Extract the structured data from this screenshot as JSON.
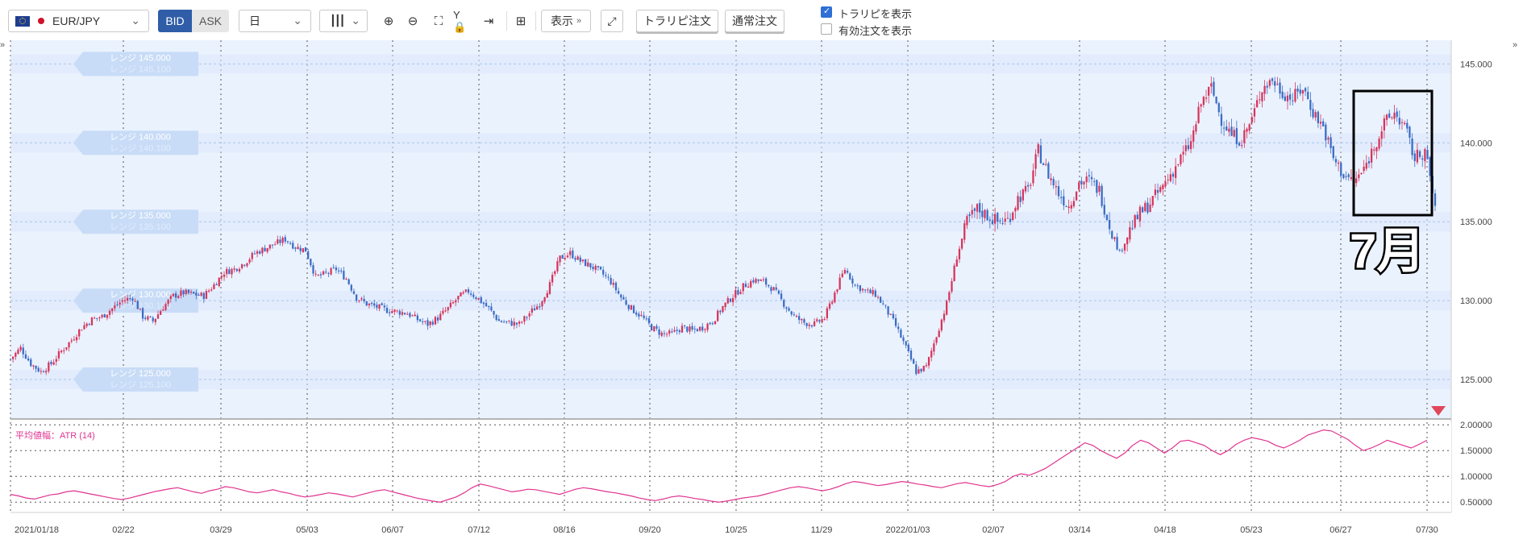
{
  "toolbar": {
    "symbol": "EUR/JPY",
    "bid_label": "BID",
    "ask_label": "ASK",
    "timeframe": "日",
    "display_label": "表示",
    "trail_order_label": "トラリピ注文",
    "normal_order_label": "通常注文",
    "show_trail_label": "トラリピを表示",
    "show_trail_checked": true,
    "show_active_label": "有効注文を表示",
    "show_active_checked": false,
    "collapse_glyph": "»"
  },
  "colors": {
    "up_candle": "#d6355b",
    "down_candle": "#3b6cc4",
    "atr_line": "#e0338f",
    "range_band": "#c8dcf7",
    "bid_active": "#2f5da8",
    "annotation": "#000000"
  },
  "annotation": {
    "label": "7月"
  },
  "chart_data": [
    {
      "type": "candlestick",
      "series_note": "EUR/JPY daily",
      "ylim": [
        122.5,
        146.5
      ],
      "y_ticks": [
        "145.000",
        "140.000",
        "135.000",
        "130.000",
        "125.000"
      ],
      "x_ticks": [
        "2021/01/18",
        "02/22",
        "03/29",
        "05/03",
        "06/07",
        "07/12",
        "08/16",
        "09/20",
        "10/25",
        "11/29",
        "2022/01/03",
        "02/07",
        "03/14",
        "04/18",
        "05/23",
        "06/27",
        "07/30"
      ],
      "grid": true,
      "range_labels": [
        {
          "front": "レンジ 145.000",
          "back": "レンジ 145.100"
        },
        {
          "front": "レンジ 140.000",
          "back": "レンジ 140.100"
        },
        {
          "front": "レンジ 135.000",
          "back": "レンジ 135.100"
        },
        {
          "front": "レンジ 130.000",
          "back": "レンジ 130.100"
        },
        {
          "front": "レンジ 125.000",
          "back": "レンジ 125.100"
        }
      ],
      "close_path": [
        [
          0,
          126.3
        ],
        [
          4,
          127.0
        ],
        [
          8,
          126.0
        ],
        [
          12,
          125.5
        ],
        [
          16,
          126.0
        ],
        [
          20,
          126.8
        ],
        [
          24,
          127.5
        ],
        [
          28,
          128.3
        ],
        [
          32,
          128.8
        ],
        [
          36,
          129.0
        ],
        [
          40,
          129.5
        ],
        [
          44,
          130.0
        ],
        [
          48,
          130.2
        ],
        [
          52,
          129.0
        ],
        [
          56,
          128.7
        ],
        [
          60,
          129.6
        ],
        [
          64,
          130.3
        ],
        [
          68,
          130.5
        ],
        [
          72,
          130.4
        ],
        [
          76,
          130.3
        ],
        [
          80,
          131.0
        ],
        [
          84,
          131.8
        ],
        [
          88,
          132.0
        ],
        [
          92,
          132.4
        ],
        [
          96,
          133.0
        ],
        [
          100,
          133.3
        ],
        [
          104,
          133.6
        ],
        [
          108,
          133.9
        ],
        [
          112,
          133.4
        ],
        [
          116,
          133.2
        ],
        [
          120,
          131.5
        ],
        [
          124,
          131.7
        ],
        [
          128,
          132.0
        ],
        [
          132,
          131.4
        ],
        [
          136,
          130.2
        ],
        [
          140,
          129.8
        ],
        [
          144,
          129.6
        ],
        [
          148,
          129.4
        ],
        [
          152,
          129.3
        ],
        [
          156,
          129.2
        ],
        [
          160,
          128.8
        ],
        [
          164,
          128.5
        ],
        [
          168,
          128.9
        ],
        [
          172,
          129.5
        ],
        [
          176,
          130.2
        ],
        [
          180,
          130.6
        ],
        [
          184,
          130.1
        ],
        [
          188,
          129.5
        ],
        [
          192,
          128.7
        ],
        [
          196,
          128.6
        ],
        [
          200,
          128.5
        ],
        [
          204,
          129.2
        ],
        [
          208,
          129.8
        ],
        [
          212,
          131.0
        ],
        [
          216,
          132.7
        ],
        [
          220,
          133.0
        ],
        [
          224,
          132.5
        ],
        [
          228,
          132.2
        ],
        [
          232,
          131.8
        ],
        [
          236,
          131.2
        ],
        [
          240,
          130.2
        ],
        [
          244,
          129.5
        ],
        [
          248,
          129.0
        ],
        [
          252,
          128.3
        ],
        [
          256,
          127.9
        ],
        [
          260,
          127.9
        ],
        [
          264,
          128.3
        ],
        [
          268,
          128.1
        ],
        [
          272,
          128.3
        ],
        [
          276,
          128.7
        ],
        [
          280,
          129.6
        ],
        [
          284,
          130.3
        ],
        [
          288,
          130.9
        ],
        [
          292,
          131.3
        ],
        [
          296,
          131.2
        ],
        [
          300,
          130.7
        ],
        [
          304,
          129.8
        ],
        [
          308,
          129.0
        ],
        [
          312,
          128.6
        ],
        [
          316,
          128.5
        ],
        [
          320,
          128.9
        ],
        [
          324,
          130.5
        ],
        [
          328,
          132.0
        ],
        [
          332,
          131.0
        ],
        [
          336,
          130.6
        ],
        [
          340,
          130.4
        ],
        [
          344,
          129.5
        ],
        [
          348,
          128.4
        ],
        [
          352,
          127.0
        ],
        [
          356,
          125.5
        ],
        [
          360,
          125.8
        ],
        [
          364,
          127.8
        ],
        [
          368,
          129.8
        ],
        [
          372,
          132.8
        ],
        [
          376,
          135.0
        ],
        [
          380,
          135.8
        ],
        [
          384,
          135.4
        ],
        [
          388,
          135.0
        ],
        [
          392,
          135.1
        ],
        [
          396,
          136.5
        ],
        [
          400,
          137.0
        ],
        [
          404,
          139.5
        ],
        [
          408,
          138.0
        ],
        [
          412,
          136.8
        ],
        [
          416,
          136.0
        ],
        [
          420,
          137.5
        ],
        [
          424,
          137.6
        ],
        [
          428,
          137.0
        ],
        [
          432,
          134.8
        ],
        [
          436,
          133.0
        ],
        [
          440,
          134.5
        ],
        [
          444,
          135.5
        ],
        [
          448,
          136.2
        ],
        [
          452,
          137.0
        ],
        [
          456,
          138.0
        ],
        [
          460,
          139.0
        ],
        [
          464,
          140.0
        ],
        [
          468,
          142.5
        ],
        [
          472,
          143.5
        ],
        [
          476,
          141.5
        ],
        [
          480,
          140.5
        ],
        [
          484,
          140.2
        ],
        [
          488,
          141.5
        ],
        [
          492,
          143.5
        ],
        [
          496,
          144.0
        ],
        [
          500,
          143.2
        ],
        [
          504,
          142.8
        ],
        [
          508,
          143.5
        ],
        [
          512,
          142.0
        ],
        [
          516,
          141.0
        ],
        [
          520,
          139.0
        ],
        [
          524,
          138.0
        ],
        [
          528,
          137.5
        ],
        [
          532,
          138.3
        ],
        [
          536,
          139.8
        ],
        [
          540,
          141.2
        ],
        [
          544,
          141.9
        ],
        [
          548,
          141.0
        ],
        [
          552,
          139.0
        ],
        [
          556,
          139.5
        ],
        [
          560,
          136.0
        ]
      ],
      "n_candles": 561
    },
    {
      "type": "line",
      "title": "平均値幅：ATR (14)",
      "ylim": [
        0.3,
        2.05
      ],
      "y_ticks": [
        "2.00000",
        "1.50000",
        "1.00000",
        "0.50000"
      ],
      "values": [
        0.65,
        0.62,
        0.58,
        0.56,
        0.6,
        0.64,
        0.66,
        0.7,
        0.72,
        0.69,
        0.66,
        0.63,
        0.6,
        0.57,
        0.55,
        0.58,
        0.62,
        0.66,
        0.7,
        0.73,
        0.76,
        0.78,
        0.74,
        0.7,
        0.67,
        0.72,
        0.75,
        0.8,
        0.78,
        0.74,
        0.7,
        0.68,
        0.71,
        0.74,
        0.7,
        0.67,
        0.63,
        0.6,
        0.62,
        0.65,
        0.68,
        0.66,
        0.63,
        0.6,
        0.64,
        0.68,
        0.72,
        0.74,
        0.7,
        0.66,
        0.62,
        0.58,
        0.55,
        0.52,
        0.5,
        0.55,
        0.6,
        0.68,
        0.78,
        0.85,
        0.82,
        0.78,
        0.74,
        0.7,
        0.72,
        0.75,
        0.74,
        0.71,
        0.68,
        0.65,
        0.7,
        0.75,
        0.78,
        0.76,
        0.73,
        0.7,
        0.68,
        0.65,
        0.62,
        0.58,
        0.55,
        0.53,
        0.56,
        0.6,
        0.62,
        0.6,
        0.57,
        0.55,
        0.52,
        0.5,
        0.52,
        0.55,
        0.58,
        0.6,
        0.62,
        0.66,
        0.7,
        0.74,
        0.78,
        0.8,
        0.78,
        0.75,
        0.72,
        0.75,
        0.8,
        0.86,
        0.9,
        0.88,
        0.85,
        0.82,
        0.84,
        0.87,
        0.9,
        0.88,
        0.85,
        0.83,
        0.8,
        0.78,
        0.82,
        0.86,
        0.88,
        0.85,
        0.82,
        0.8,
        0.84,
        0.9,
        1.0,
        1.05,
        1.02,
        1.08,
        1.15,
        1.25,
        1.35,
        1.45,
        1.55,
        1.65,
        1.6,
        1.5,
        1.42,
        1.35,
        1.45,
        1.6,
        1.7,
        1.65,
        1.55,
        1.45,
        1.55,
        1.68,
        1.7,
        1.65,
        1.6,
        1.5,
        1.42,
        1.5,
        1.62,
        1.7,
        1.75,
        1.72,
        1.68,
        1.6,
        1.55,
        1.62,
        1.7,
        1.8,
        1.85,
        1.9,
        1.88,
        1.8,
        1.72,
        1.6,
        1.5,
        1.55,
        1.62,
        1.7,
        1.65,
        1.6,
        1.55,
        1.62,
        1.7
      ]
    }
  ]
}
